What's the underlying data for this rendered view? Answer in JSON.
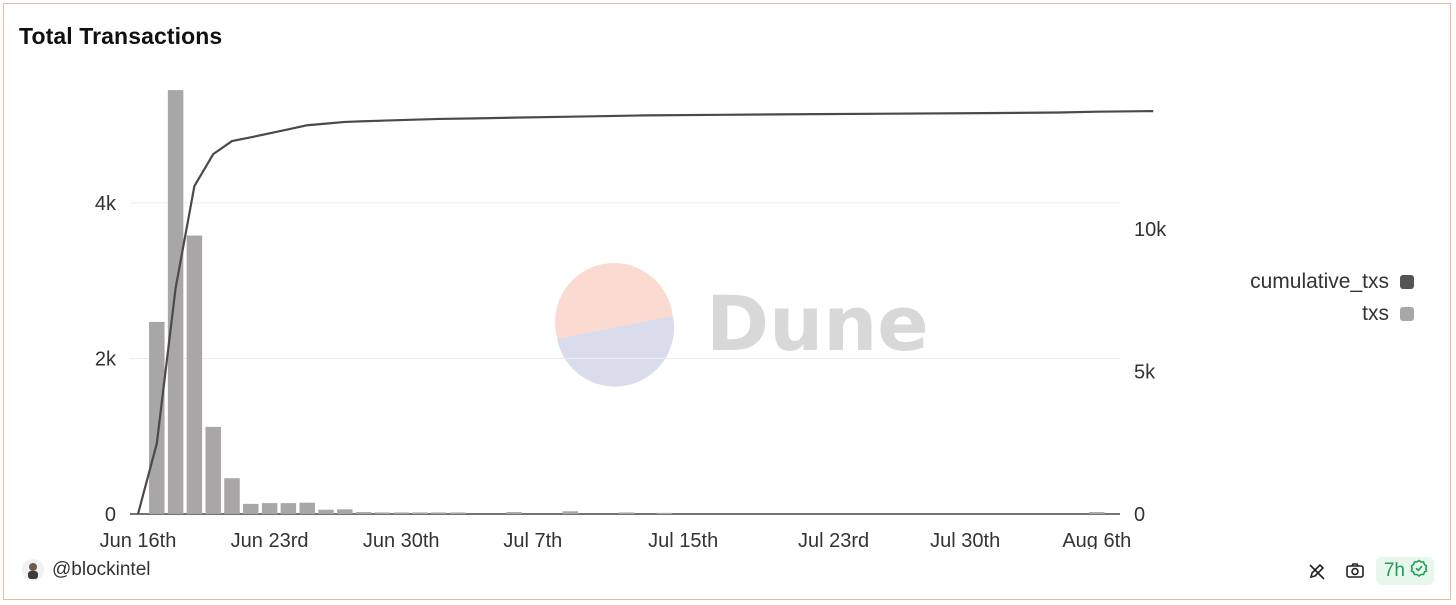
{
  "chart_data": {
    "type": "bar",
    "title": "Total Transactions",
    "x_axis": {
      "type": "date",
      "ticks": [
        "Jun 16th",
        "Jun 23rd",
        "Jun 30th",
        "Jul 7th",
        "Jul 15th",
        "Jul 23rd",
        "Jul 30th",
        "Aug 6th"
      ],
      "tick_dates": [
        "2024-06-16",
        "2024-06-23",
        "2024-06-30",
        "2024-07-07",
        "2024-07-15",
        "2024-07-23",
        "2024-07-30",
        "2024-08-06"
      ]
    },
    "y_axis_left": {
      "ticks": [
        "0",
        "2k",
        "4k"
      ],
      "tick_values": [
        0,
        2000,
        4000
      ],
      "range": [
        0,
        5400
      ]
    },
    "y_axis_right": {
      "ticks": [
        "0",
        "5k",
        "10k"
      ],
      "tick_values": [
        0,
        5000,
        10000
      ],
      "range": [
        0,
        14800
      ]
    },
    "grid": true,
    "legend_position": "right",
    "series": [
      {
        "name": "txs",
        "type": "bar",
        "axis": "left",
        "color": "#a8a6a6",
        "x": [
          "2024-06-17",
          "2024-06-18",
          "2024-06-19",
          "2024-06-20",
          "2024-06-21",
          "2024-06-22",
          "2024-06-23",
          "2024-06-24",
          "2024-06-25",
          "2024-06-26",
          "2024-06-27",
          "2024-06-28",
          "2024-06-29",
          "2024-06-30",
          "2024-07-01",
          "2024-07-02",
          "2024-07-03",
          "2024-07-06",
          "2024-07-09",
          "2024-07-12",
          "2024-07-14",
          "2024-08-06"
        ],
        "values": [
          2470,
          5450,
          3580,
          1120,
          460,
          130,
          140,
          140,
          145,
          55,
          60,
          25,
          20,
          20,
          20,
          20,
          20,
          25,
          35,
          20,
          15,
          25
        ]
      },
      {
        "name": "cumulative_txs",
        "type": "line",
        "axis": "right",
        "color": "#4a4a4a",
        "x": [
          "2024-06-16",
          "2024-06-17",
          "2024-06-18",
          "2024-06-19",
          "2024-06-20",
          "2024-06-21",
          "2024-06-22",
          "2024-06-23",
          "2024-06-24",
          "2024-06-25",
          "2024-06-26",
          "2024-06-27",
          "2024-06-28",
          "2024-06-30",
          "2024-07-02",
          "2024-07-04",
          "2024-07-06",
          "2024-07-09",
          "2024-07-13",
          "2024-07-17",
          "2024-07-21",
          "2024-07-26",
          "2024-07-31",
          "2024-08-04",
          "2024-08-06",
          "2024-08-09"
        ],
        "values": [
          0,
          2470,
          7920,
          11500,
          12620,
          13080,
          13210,
          13350,
          13490,
          13635,
          13690,
          13750,
          13775,
          13815,
          13855,
          13875,
          13900,
          13935,
          13980,
          14000,
          14020,
          14040,
          14060,
          14080,
          14110,
          14130
        ]
      }
    ]
  },
  "legend": [
    {
      "label": "cumulative_txs",
      "color": "#555555"
    },
    {
      "label": "txs",
      "color": "#a8a6a6"
    }
  ],
  "watermark": {
    "text": "Dune"
  },
  "footer": {
    "author": "@blockintel",
    "age_badge": "7h",
    "icons": [
      "edit-icon",
      "camera-icon",
      "check-circle-icon"
    ]
  }
}
